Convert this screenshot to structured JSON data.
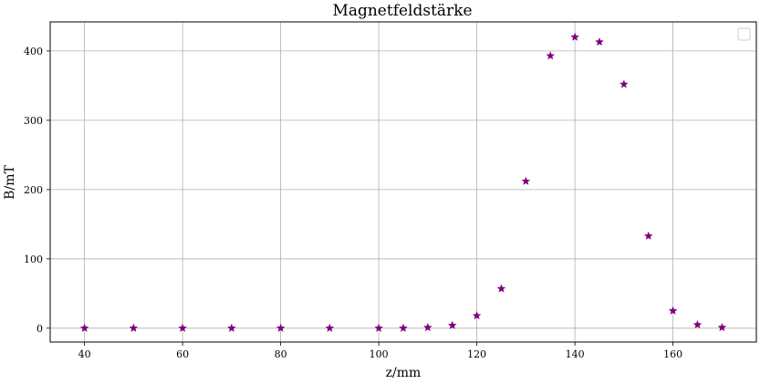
{
  "chart_data": {
    "type": "scatter",
    "title": "Magnetfeldstärke",
    "xlabel": "z/mm",
    "ylabel": "B/mT",
    "xlim": [
      33,
      177
    ],
    "ylim": [
      -20,
      442
    ],
    "xticks": [
      40,
      60,
      80,
      100,
      120,
      140,
      160
    ],
    "yticks": [
      0,
      100,
      200,
      300,
      400
    ],
    "grid": true,
    "legend": "top-right",
    "marker": "star",
    "marker_color": "#800080",
    "series": [
      {
        "x": [
          40,
          50,
          60,
          70,
          80,
          90,
          100,
          105,
          110,
          115,
          120,
          125,
          130,
          135,
          140,
          145,
          150,
          155,
          160,
          165,
          170
        ],
        "y": [
          0,
          0,
          0,
          0,
          0,
          0,
          0,
          0,
          1,
          4,
          18,
          57,
          212,
          393,
          420,
          413,
          352,
          133,
          25,
          5,
          1
        ]
      }
    ]
  }
}
